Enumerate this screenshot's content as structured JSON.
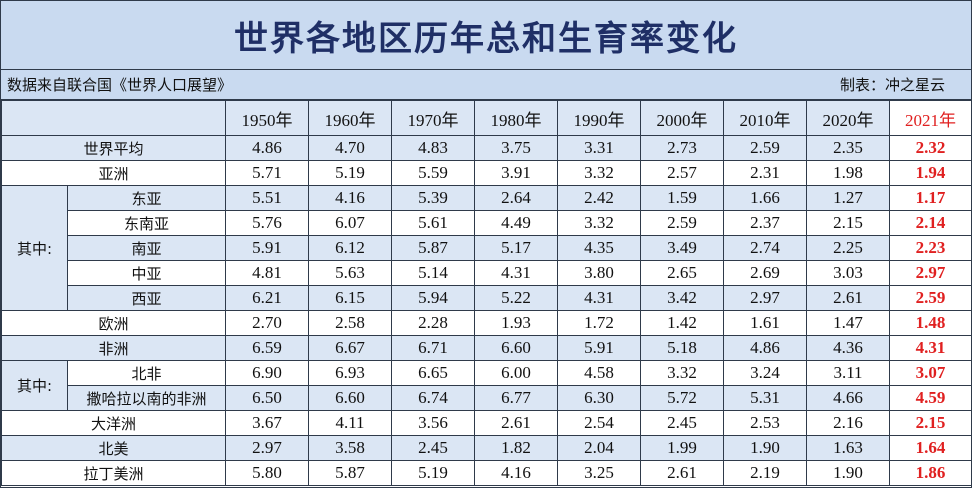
{
  "title": "世界各地区历年总和生育率变化",
  "source": "数据来自联合国《世界人口展望》",
  "author": "制表：冲之星云",
  "years": [
    "1950年",
    "1960年",
    "1970年",
    "1980年",
    "1990年",
    "2000年",
    "2010年",
    "2020年",
    "2021年"
  ],
  "highlight_color": "#e02020",
  "groups": [
    {
      "label": "其中:"
    },
    {
      "label": "其中:"
    }
  ],
  "rows": [
    {
      "label": "世界平均",
      "values": [
        "4.86",
        "4.70",
        "4.83",
        "3.75",
        "3.31",
        "2.73",
        "2.59",
        "2.35",
        "2.32"
      ]
    },
    {
      "label": "亚洲",
      "values": [
        "5.71",
        "5.19",
        "5.59",
        "3.91",
        "3.32",
        "2.57",
        "2.31",
        "1.98",
        "1.94"
      ]
    },
    {
      "label": "东亚",
      "values": [
        "5.51",
        "4.16",
        "5.39",
        "2.64",
        "2.42",
        "1.59",
        "1.66",
        "1.27",
        "1.17"
      ]
    },
    {
      "label": "东南亚",
      "values": [
        "5.76",
        "6.07",
        "5.61",
        "4.49",
        "3.32",
        "2.59",
        "2.37",
        "2.15",
        "2.14"
      ]
    },
    {
      "label": "南亚",
      "values": [
        "5.91",
        "6.12",
        "5.87",
        "5.17",
        "4.35",
        "3.49",
        "2.74",
        "2.25",
        "2.23"
      ]
    },
    {
      "label": "中亚",
      "values": [
        "4.81",
        "5.63",
        "5.14",
        "4.31",
        "3.80",
        "2.65",
        "2.69",
        "3.03",
        "2.97"
      ]
    },
    {
      "label": "西亚",
      "values": [
        "6.21",
        "6.15",
        "5.94",
        "5.22",
        "4.31",
        "3.42",
        "2.97",
        "2.61",
        "2.59"
      ]
    },
    {
      "label": "欧洲",
      "values": [
        "2.70",
        "2.58",
        "2.28",
        "1.93",
        "1.72",
        "1.42",
        "1.61",
        "1.47",
        "1.48"
      ]
    },
    {
      "label": "非洲",
      "values": [
        "6.59",
        "6.67",
        "6.71",
        "6.60",
        "5.91",
        "5.18",
        "4.86",
        "4.36",
        "4.31"
      ]
    },
    {
      "label": "北非",
      "values": [
        "6.90",
        "6.93",
        "6.65",
        "6.00",
        "4.58",
        "3.32",
        "3.24",
        "3.11",
        "3.07"
      ]
    },
    {
      "label": "撒哈拉以南的非洲",
      "values": [
        "6.50",
        "6.60",
        "6.74",
        "6.77",
        "6.30",
        "5.72",
        "5.31",
        "4.66",
        "4.59"
      ]
    },
    {
      "label": "大洋洲",
      "values": [
        "3.67",
        "4.11",
        "3.56",
        "2.61",
        "2.54",
        "2.45",
        "2.53",
        "2.16",
        "2.15"
      ]
    },
    {
      "label": "北美",
      "values": [
        "2.97",
        "3.58",
        "2.45",
        "1.82",
        "2.04",
        "1.99",
        "1.90",
        "1.63",
        "1.64"
      ]
    },
    {
      "label": "拉丁美洲",
      "values": [
        "5.80",
        "5.87",
        "5.19",
        "4.16",
        "3.25",
        "2.61",
        "2.19",
        "1.90",
        "1.86"
      ]
    }
  ]
}
